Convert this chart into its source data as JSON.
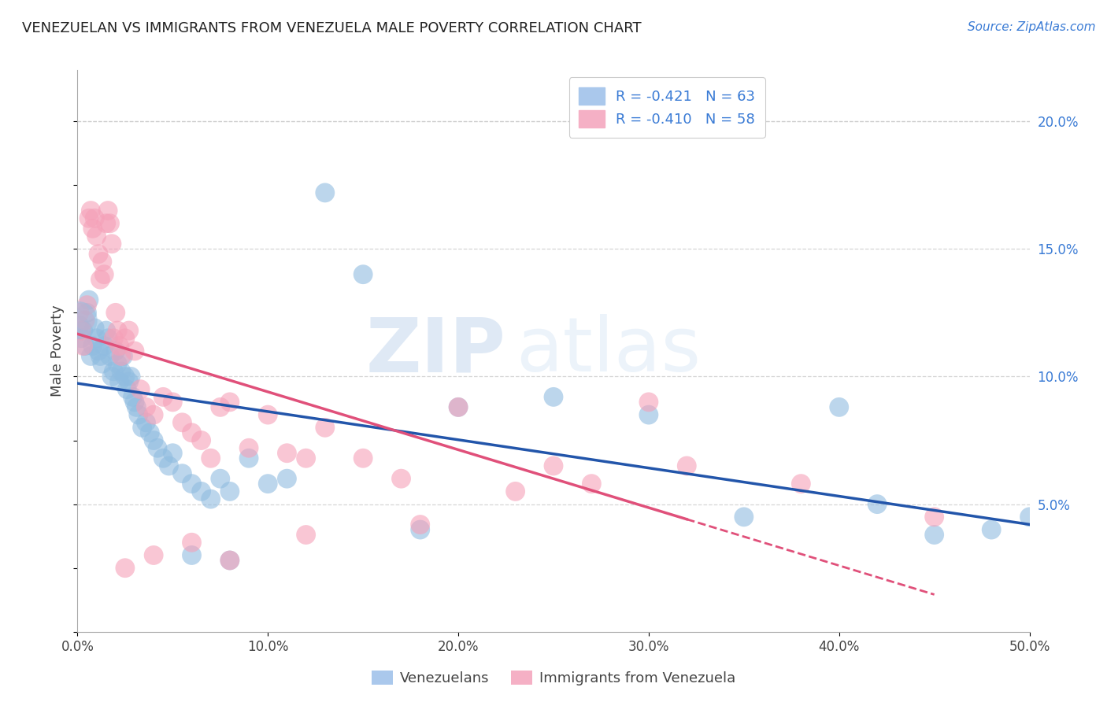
{
  "title": "VENEZUELAN VS IMMIGRANTS FROM VENEZUELA MALE POVERTY CORRELATION CHART",
  "source": "Source: ZipAtlas.com",
  "ylabel": "Male Poverty",
  "watermark": "ZIPatlas",
  "xlim": [
    0,
    0.5
  ],
  "ylim": [
    0,
    0.22
  ],
  "xticks": [
    0.0,
    0.1,
    0.2,
    0.3,
    0.4,
    0.5
  ],
  "xtick_labels": [
    "0.0%",
    "10.0%",
    "20.0%",
    "30.0%",
    "40.0%",
    "50.0%"
  ],
  "ytick_vals": [
    0.05,
    0.1,
    0.15,
    0.2
  ],
  "ytick_labels": [
    "5.0%",
    "10.0%",
    "15.0%",
    "20.0%"
  ],
  "blue_scatter_color": "#90bce0",
  "pink_scatter_color": "#f5a0b8",
  "blue_line_color": "#2255aa",
  "pink_line_color": "#e0507a",
  "grid_color": "#cccccc",
  "background_color": "#ffffff",
  "venezuelans_x": [
    0.001,
    0.002,
    0.003,
    0.004,
    0.005,
    0.006,
    0.007,
    0.008,
    0.009,
    0.01,
    0.011,
    0.012,
    0.013,
    0.014,
    0.015,
    0.016,
    0.017,
    0.018,
    0.019,
    0.02,
    0.021,
    0.022,
    0.023,
    0.024,
    0.025,
    0.026,
    0.027,
    0.028,
    0.029,
    0.03,
    0.031,
    0.032,
    0.034,
    0.036,
    0.038,
    0.04,
    0.042,
    0.045,
    0.048,
    0.05,
    0.055,
    0.06,
    0.065,
    0.07,
    0.075,
    0.08,
    0.09,
    0.1,
    0.11,
    0.13,
    0.15,
    0.2,
    0.25,
    0.3,
    0.35,
    0.4,
    0.42,
    0.45,
    0.48,
    0.5,
    0.08,
    0.18,
    0.06
  ],
  "venezuelans_y": [
    0.12,
    0.115,
    0.118,
    0.112,
    0.125,
    0.13,
    0.108,
    0.112,
    0.119,
    0.115,
    0.11,
    0.108,
    0.105,
    0.112,
    0.118,
    0.115,
    0.108,
    0.1,
    0.102,
    0.11,
    0.105,
    0.098,
    0.102,
    0.108,
    0.1,
    0.095,
    0.098,
    0.1,
    0.092,
    0.09,
    0.088,
    0.085,
    0.08,
    0.082,
    0.078,
    0.075,
    0.072,
    0.068,
    0.065,
    0.07,
    0.062,
    0.058,
    0.055,
    0.052,
    0.06,
    0.055,
    0.068,
    0.058,
    0.06,
    0.172,
    0.14,
    0.088,
    0.092,
    0.085,
    0.045,
    0.088,
    0.05,
    0.038,
    0.04,
    0.045,
    0.028,
    0.04,
    0.03
  ],
  "immigrants_x": [
    0.001,
    0.002,
    0.003,
    0.004,
    0.005,
    0.006,
    0.007,
    0.008,
    0.009,
    0.01,
    0.011,
    0.012,
    0.013,
    0.014,
    0.015,
    0.016,
    0.017,
    0.018,
    0.019,
    0.02,
    0.021,
    0.022,
    0.023,
    0.025,
    0.027,
    0.03,
    0.033,
    0.036,
    0.04,
    0.045,
    0.05,
    0.055,
    0.06,
    0.065,
    0.07,
    0.075,
    0.08,
    0.09,
    0.1,
    0.11,
    0.12,
    0.13,
    0.15,
    0.17,
    0.2,
    0.23,
    0.27,
    0.32,
    0.38,
    0.45,
    0.3,
    0.25,
    0.18,
    0.12,
    0.08,
    0.06,
    0.04,
    0.025
  ],
  "immigrants_y": [
    0.125,
    0.118,
    0.112,
    0.122,
    0.128,
    0.162,
    0.165,
    0.158,
    0.162,
    0.155,
    0.148,
    0.138,
    0.145,
    0.14,
    0.16,
    0.165,
    0.16,
    0.152,
    0.115,
    0.125,
    0.118,
    0.112,
    0.108,
    0.115,
    0.118,
    0.11,
    0.095,
    0.088,
    0.085,
    0.092,
    0.09,
    0.082,
    0.078,
    0.075,
    0.068,
    0.088,
    0.09,
    0.072,
    0.085,
    0.07,
    0.068,
    0.08,
    0.068,
    0.06,
    0.088,
    0.055,
    0.058,
    0.065,
    0.058,
    0.045,
    0.09,
    0.065,
    0.042,
    0.038,
    0.028,
    0.035,
    0.03,
    0.025
  ]
}
